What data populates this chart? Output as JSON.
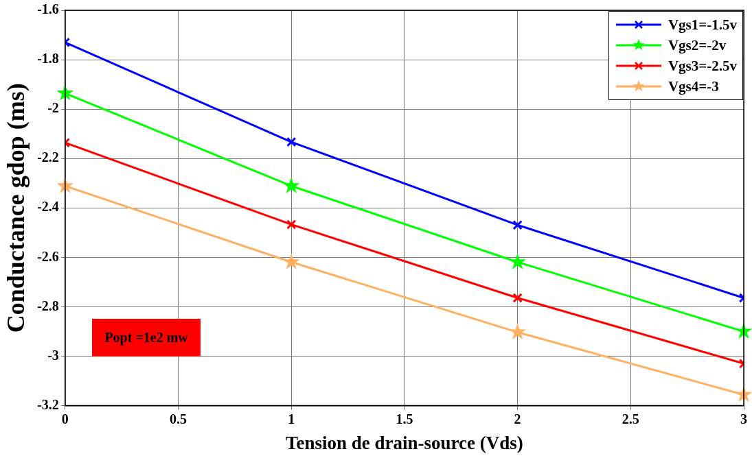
{
  "chart_data": {
    "type": "line",
    "xlabel": "Tension de drain-source (Vds)",
    "ylabel": "Conductance gdop (ms)",
    "x": [
      0,
      1,
      2,
      3
    ],
    "series": [
      {
        "name": "Vgs1=-1.5v",
        "color": "#0000ff",
        "marker": "cross",
        "values": [
          -1.73,
          -2.133,
          -2.469,
          -2.764
        ]
      },
      {
        "name": "Vgs2=-2v",
        "color": "#00ff00",
        "marker": "star",
        "values": [
          -1.936,
          -2.311,
          -2.619,
          -2.9
        ]
      },
      {
        "name": "Vgs3=-2.5v",
        "color": "#ff0000",
        "marker": "cross",
        "values": [
          -2.136,
          -2.467,
          -2.764,
          -3.03
        ]
      },
      {
        "name": "Vgs4=-3",
        "color": "#ffb060",
        "marker": "star",
        "values": [
          -2.311,
          -2.619,
          -2.903,
          -3.156
        ]
      }
    ],
    "xlim": [
      0,
      3
    ],
    "xticks": [
      0,
      0.5,
      1,
      1.5,
      2,
      2.5,
      3
    ],
    "ylim": [
      -3.2,
      -1.6
    ],
    "yticks": [
      -3.2,
      -3,
      -2.8,
      -2.6,
      -2.4,
      -2.2,
      -2,
      -1.8,
      -1.6
    ],
    "grid": true,
    "legend": "top right",
    "line_style": "solid",
    "annotations": [
      "Popt =1e2 mw"
    ]
  }
}
